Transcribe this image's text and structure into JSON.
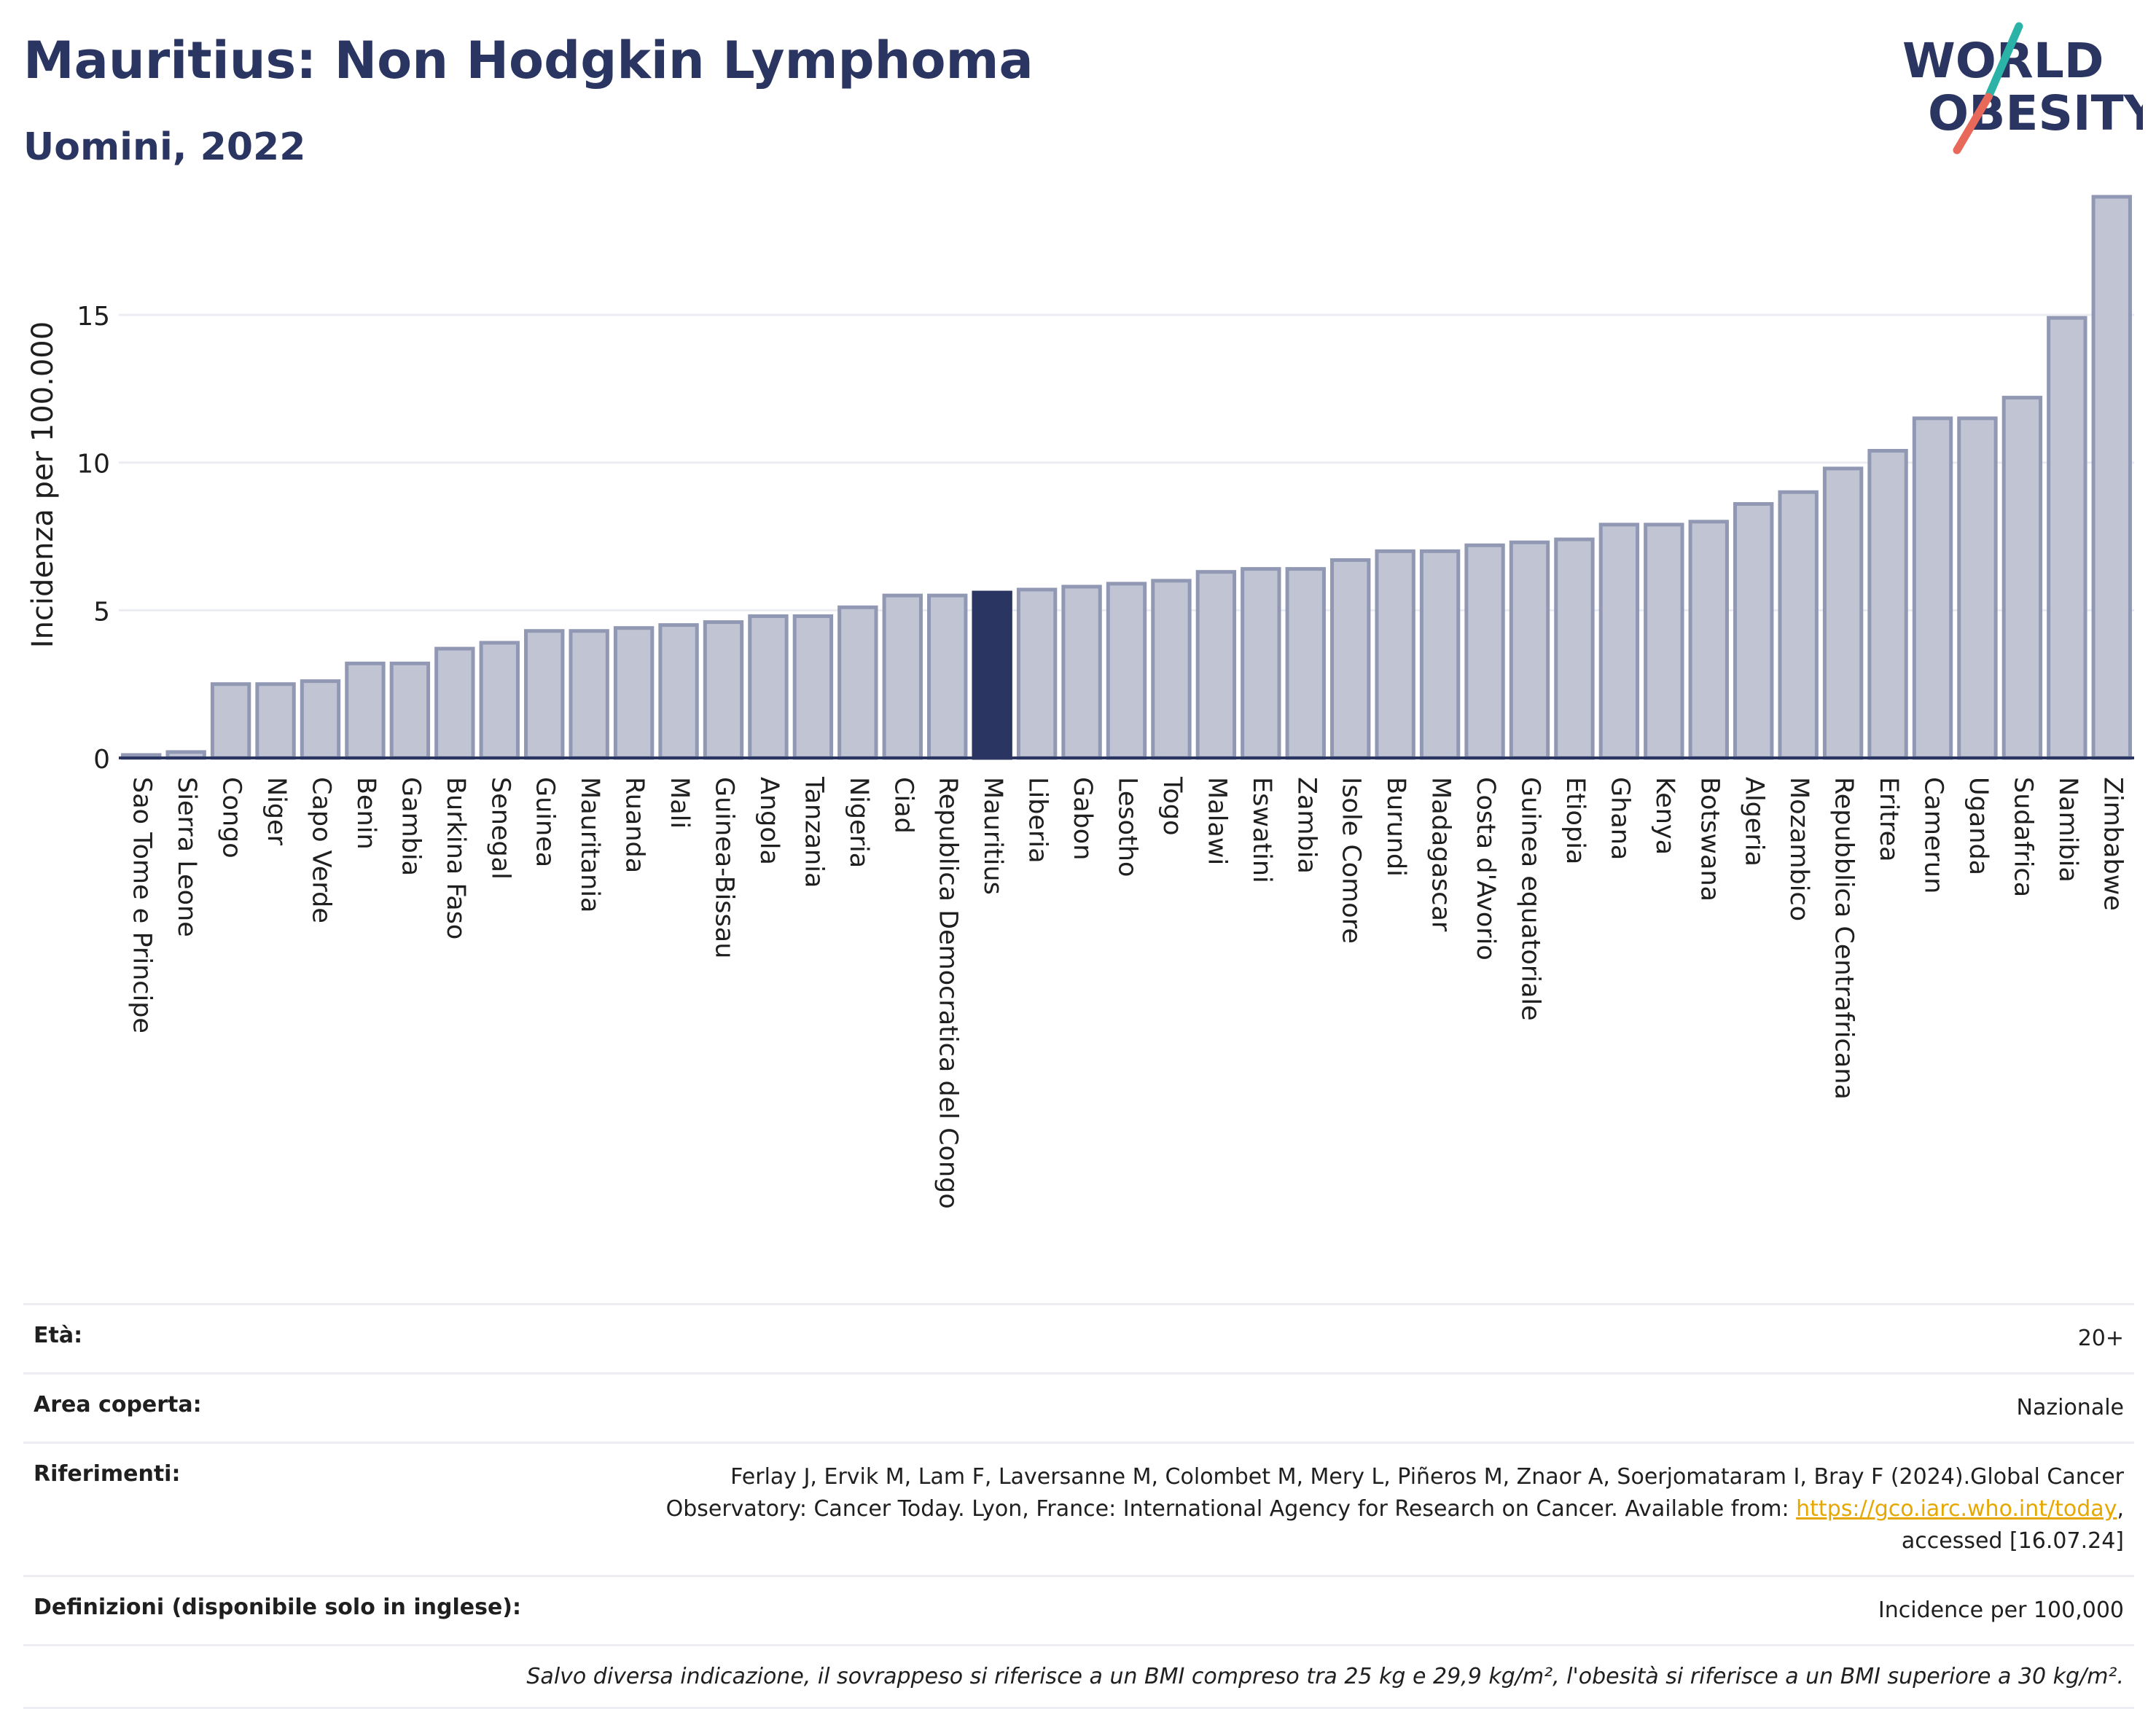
{
  "header": {
    "title": "Mauritius: Non Hodgkin Lymphoma",
    "subtitle": "Uomini, 2022",
    "logo_line1": "WORLD",
    "logo_line2": "OBESITY"
  },
  "chart_data": {
    "type": "bar",
    "ylabel": "Incidenza per 100.000",
    "xlabel": "",
    "ylim": [
      0,
      19
    ],
    "yticks": [
      0,
      5,
      10,
      15
    ],
    "grid": true,
    "highlight": "Mauritius",
    "colors": {
      "bar": "#c0c4d3",
      "bar_edge": "#9198b3",
      "highlight": "#2a3561",
      "grid": "#ebedf3",
      "axis": "#2a3561"
    },
    "categories": [
      "Sao Tome e Principe",
      "Sierra Leone",
      "Congo",
      "Niger",
      "Capo Verde",
      "Benin",
      "Gambia",
      "Burkina Faso",
      "Senegal",
      "Guinea",
      "Mauritania",
      "Ruanda",
      "Mali",
      "Guinea-Bissau",
      "Angola",
      "Tanzania",
      "Nigeria",
      "Ciad",
      "Republica Democratica del Congo",
      "Mauritius",
      "Liberia",
      "Gabon",
      "Lesotho",
      "Togo",
      "Malawi",
      "Eswatini",
      "Zambia",
      "Isole Comore",
      "Burundi",
      "Madagascar",
      "Costa d'Avorio",
      "Guinea equatoriale",
      "Etiopia",
      "Ghana",
      "Kenya",
      "Botswana",
      "Algeria",
      "Mozambico",
      "Repubblica Centrafricana",
      "Eritrea",
      "Camerun",
      "Uganda",
      "Sudafrica",
      "Namibia",
      "Zimbabwe"
    ],
    "values": [
      0.1,
      0.2,
      2.5,
      2.5,
      2.6,
      3.2,
      3.2,
      3.7,
      3.9,
      4.3,
      4.3,
      4.4,
      4.5,
      4.6,
      4.8,
      4.8,
      5.1,
      5.5,
      5.5,
      5.6,
      5.7,
      5.8,
      5.9,
      6.0,
      6.3,
      6.4,
      6.4,
      6.7,
      7.0,
      7.0,
      7.2,
      7.3,
      7.4,
      7.9,
      7.9,
      8.0,
      8.6,
      9.0,
      9.8,
      10.4,
      11.5,
      11.5,
      12.2,
      14.9,
      19.0
    ]
  },
  "info": {
    "age_label": "Età:",
    "age_value": "20+",
    "area_label": "Area coperta:",
    "area_value": "Nazionale",
    "ref_label": "Riferimenti:",
    "ref_line1": "Ferlay J, Ervik M, Lam F, Laversanne M, Colombet M, Mery L, Piñeros M, Znaor A, Soerjomataram I, Bray F (2024).Global Cancer",
    "ref_line2_pre": "Observatory: Cancer Today. Lyon, France: International Agency for Research on Cancer. Available from: ",
    "ref_link": "https://gco.iarc.who.int/today",
    "ref_line2_post": ",",
    "ref_line3": "accessed [16.07.24]",
    "def_label": "Definizioni (disponibile solo in inglese):",
    "def_value": "Incidence per 100,000",
    "note": "Salvo diversa indicazione, il sovrappeso si riferisce a un BMI compreso tra 25 kg e 29,9 kg/m², l'obesità si riferisce a un BMI superiore a 30 kg/m²."
  }
}
